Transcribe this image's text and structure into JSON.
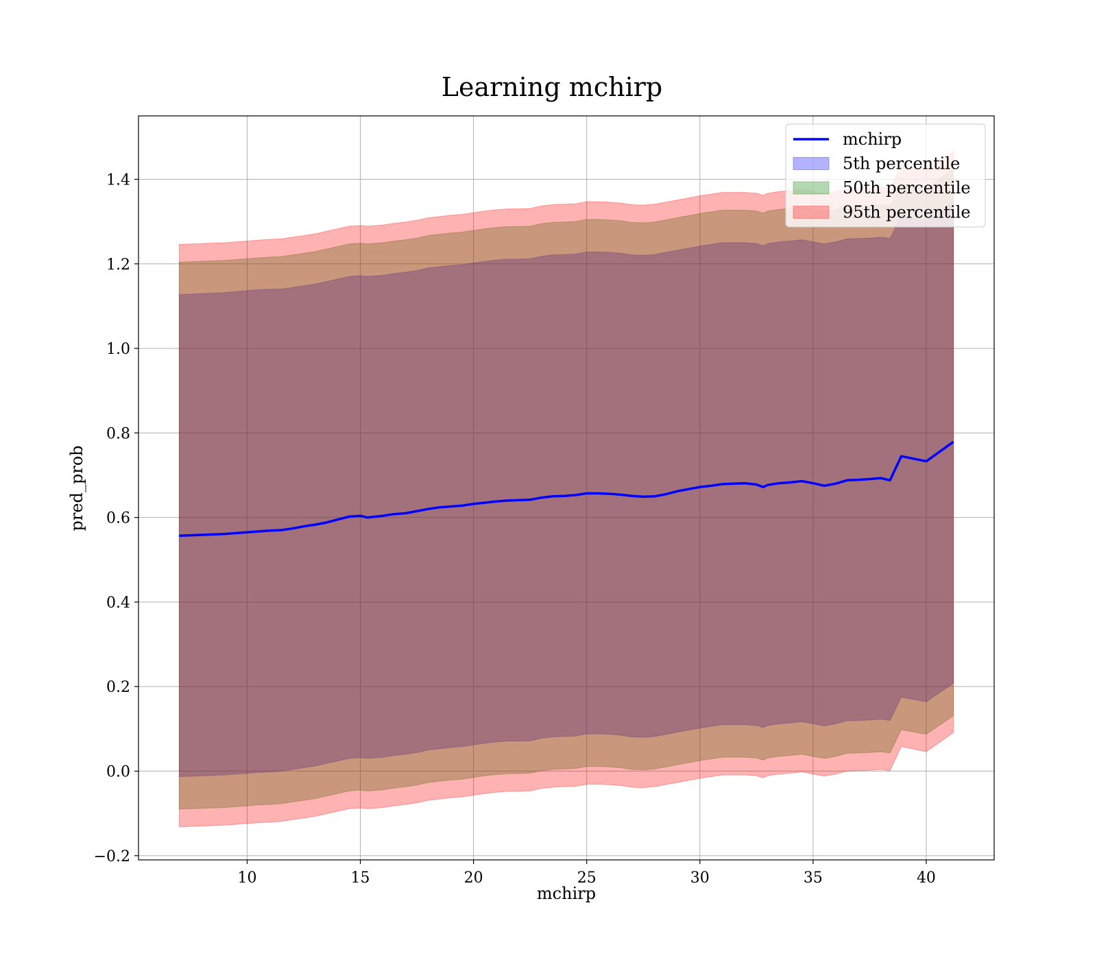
{
  "chart_data": {
    "type": "line",
    "title": "Learning mchirp",
    "xlabel": "mchirp",
    "ylabel": "pred_prob",
    "xlim": [
      5.2,
      43.0
    ],
    "ylim": [
      -0.21,
      1.55
    ],
    "xticks": [
      10,
      15,
      20,
      25,
      30,
      35,
      40
    ],
    "yticks": [
      -0.2,
      0.0,
      0.2,
      0.4,
      0.6,
      0.8,
      1.0,
      1.2,
      1.4
    ],
    "grid": true,
    "legend_position": "upper right",
    "x": [
      7.0,
      9.0,
      10.5,
      11.0,
      11.5,
      12.0,
      12.5,
      13.0,
      13.5,
      14.0,
      14.5,
      15.0,
      15.3,
      16.0,
      16.5,
      17.0,
      17.5,
      18.0,
      18.5,
      19.0,
      19.5,
      20.0,
      20.5,
      21.0,
      21.5,
      22.0,
      22.5,
      23.0,
      23.5,
      24.0,
      24.5,
      25.0,
      25.5,
      26.0,
      26.5,
      27.0,
      27.5,
      28.0,
      28.5,
      29.0,
      29.5,
      30.0,
      30.5,
      31.0,
      31.5,
      32.0,
      32.5,
      32.8,
      33.0,
      33.5,
      34.0,
      34.5,
      35.0,
      35.5,
      36.0,
      36.5,
      37.0,
      37.5,
      38.0,
      38.4,
      38.9,
      40.0,
      41.2
    ],
    "series": [
      {
        "name": "mchirp",
        "kind": "line",
        "color": "#0000ff",
        "values": [
          0.557,
          0.561,
          0.567,
          0.569,
          0.57,
          0.574,
          0.579,
          0.583,
          0.588,
          0.595,
          0.602,
          0.604,
          0.6,
          0.604,
          0.608,
          0.61,
          0.615,
          0.62,
          0.624,
          0.626,
          0.628,
          0.632,
          0.635,
          0.638,
          0.64,
          0.641,
          0.642,
          0.647,
          0.65,
          0.651,
          0.653,
          0.657,
          0.657,
          0.656,
          0.654,
          0.651,
          0.649,
          0.65,
          0.655,
          0.662,
          0.667,
          0.672,
          0.675,
          0.679,
          0.68,
          0.681,
          0.678,
          0.672,
          0.677,
          0.681,
          0.683,
          0.686,
          0.681,
          0.675,
          0.68,
          0.688,
          0.689,
          0.691,
          0.693,
          0.688,
          0.745,
          0.733,
          0.779
        ]
      },
      {
        "name": "5th percentile",
        "kind": "band",
        "color": "#0000ff",
        "upper": [
          1.127,
          1.132,
          1.139,
          1.14,
          1.14,
          1.144,
          1.148,
          1.152,
          1.158,
          1.164,
          1.17,
          1.172,
          1.17,
          1.173,
          1.177,
          1.18,
          1.184,
          1.19,
          1.193,
          1.196,
          1.198,
          1.202,
          1.206,
          1.209,
          1.211,
          1.211,
          1.212,
          1.218,
          1.221,
          1.222,
          1.223,
          1.228,
          1.228,
          1.227,
          1.225,
          1.221,
          1.22,
          1.222,
          1.227,
          1.232,
          1.237,
          1.242,
          1.246,
          1.25,
          1.25,
          1.25,
          1.248,
          1.243,
          1.248,
          1.252,
          1.254,
          1.257,
          1.252,
          1.247,
          1.252,
          1.259,
          1.26,
          1.261,
          1.263,
          1.26,
          1.313,
          1.302,
          1.348
        ],
        "lower": [
          -0.013,
          -0.009,
          -0.003,
          -0.002,
          0.0,
          0.004,
          0.008,
          0.012,
          0.018,
          0.024,
          0.03,
          0.032,
          0.03,
          0.033,
          0.037,
          0.04,
          0.044,
          0.05,
          0.053,
          0.056,
          0.058,
          0.062,
          0.066,
          0.069,
          0.071,
          0.071,
          0.072,
          0.078,
          0.081,
          0.082,
          0.083,
          0.088,
          0.088,
          0.087,
          0.085,
          0.081,
          0.08,
          0.082,
          0.087,
          0.092,
          0.097,
          0.102,
          0.106,
          0.11,
          0.11,
          0.11,
          0.108,
          0.103,
          0.108,
          0.112,
          0.114,
          0.117,
          0.112,
          0.107,
          0.112,
          0.119,
          0.12,
          0.121,
          0.123,
          0.12,
          0.175,
          0.164,
          0.208
        ]
      },
      {
        "name": "50th percentile",
        "kind": "band",
        "color": "#008000",
        "upper": [
          1.204,
          1.208,
          1.214,
          1.216,
          1.217,
          1.221,
          1.225,
          1.229,
          1.235,
          1.241,
          1.247,
          1.249,
          1.247,
          1.25,
          1.254,
          1.257,
          1.261,
          1.267,
          1.27,
          1.273,
          1.275,
          1.279,
          1.283,
          1.286,
          1.288,
          1.288,
          1.289,
          1.295,
          1.298,
          1.299,
          1.3,
          1.305,
          1.305,
          1.304,
          1.302,
          1.298,
          1.297,
          1.299,
          1.304,
          1.309,
          1.314,
          1.319,
          1.323,
          1.327,
          1.327,
          1.327,
          1.325,
          1.32,
          1.325,
          1.329,
          1.331,
          1.334,
          1.329,
          1.324,
          1.329,
          1.336,
          1.337,
          1.338,
          1.34,
          1.337,
          1.39,
          1.379,
          1.425
        ],
        "lower": [
          -0.09,
          -0.086,
          -0.08,
          -0.079,
          -0.077,
          -0.073,
          -0.069,
          -0.065,
          -0.059,
          -0.053,
          -0.047,
          -0.045,
          -0.047,
          -0.044,
          -0.04,
          -0.037,
          -0.033,
          -0.027,
          -0.024,
          -0.021,
          -0.019,
          -0.015,
          -0.011,
          -0.008,
          -0.006,
          -0.006,
          -0.005,
          0.001,
          0.004,
          0.005,
          0.006,
          0.011,
          0.011,
          0.01,
          0.008,
          0.004,
          0.003,
          0.005,
          0.01,
          0.015,
          0.02,
          0.025,
          0.029,
          0.033,
          0.033,
          0.033,
          0.031,
          0.026,
          0.031,
          0.035,
          0.037,
          0.04,
          0.035,
          0.03,
          0.035,
          0.042,
          0.043,
          0.044,
          0.046,
          0.043,
          0.098,
          0.087,
          0.131
        ]
      },
      {
        "name": "95th percentile",
        "kind": "band",
        "color": "#ff0000",
        "upper": [
          1.246,
          1.25,
          1.256,
          1.258,
          1.259,
          1.263,
          1.267,
          1.271,
          1.277,
          1.283,
          1.289,
          1.291,
          1.289,
          1.292,
          1.296,
          1.299,
          1.303,
          1.309,
          1.312,
          1.315,
          1.317,
          1.321,
          1.325,
          1.328,
          1.33,
          1.33,
          1.331,
          1.337,
          1.34,
          1.341,
          1.342,
          1.347,
          1.347,
          1.346,
          1.344,
          1.34,
          1.339,
          1.341,
          1.346,
          1.351,
          1.356,
          1.361,
          1.365,
          1.369,
          1.369,
          1.369,
          1.367,
          1.362,
          1.367,
          1.371,
          1.373,
          1.376,
          1.371,
          1.366,
          1.371,
          1.378,
          1.379,
          1.38,
          1.382,
          1.379,
          1.432,
          1.421,
          1.467
        ],
        "lower": [
          -0.132,
          -0.128,
          -0.122,
          -0.121,
          -0.119,
          -0.115,
          -0.111,
          -0.107,
          -0.101,
          -0.095,
          -0.089,
          -0.087,
          -0.089,
          -0.086,
          -0.082,
          -0.079,
          -0.075,
          -0.069,
          -0.066,
          -0.063,
          -0.061,
          -0.057,
          -0.053,
          -0.05,
          -0.048,
          -0.048,
          -0.047,
          -0.041,
          -0.038,
          -0.037,
          -0.036,
          -0.031,
          -0.031,
          -0.032,
          -0.034,
          -0.038,
          -0.039,
          -0.037,
          -0.032,
          -0.027,
          -0.022,
          -0.017,
          -0.013,
          -0.009,
          -0.009,
          -0.009,
          -0.011,
          -0.016,
          -0.011,
          -0.007,
          -0.005,
          -0.002,
          -0.007,
          -0.012,
          -0.007,
          0.0,
          0.001,
          0.002,
          0.004,
          0.001,
          0.058,
          0.046,
          0.091
        ]
      }
    ]
  }
}
